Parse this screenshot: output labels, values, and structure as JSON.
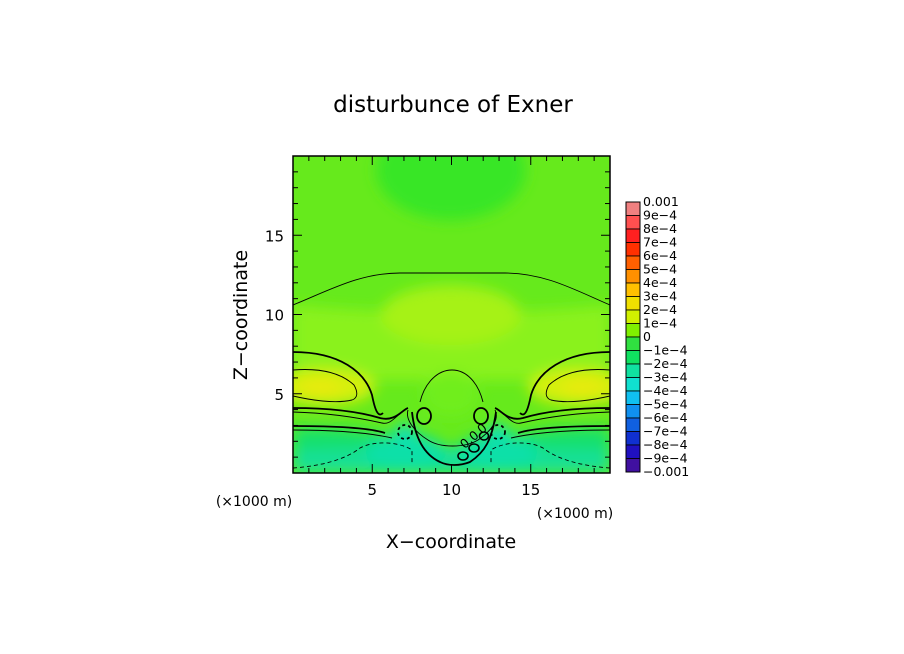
{
  "chart_data": {
    "type": "heatmap",
    "title": "disturbunce of Exner",
    "xlabel": "X−coordinate",
    "ylabel": "Z−coordinate",
    "x_unit": "(×1000 m)",
    "y_unit": "(×1000 m)",
    "xlim": [
      0,
      20
    ],
    "ylim": [
      0,
      20
    ],
    "x_ticks": [
      5,
      10,
      15
    ],
    "y_ticks": [
      5,
      10,
      15
    ],
    "x_tick_labels": [
      "5",
      "10",
      "15"
    ],
    "y_tick_labels": [
      "5",
      "10",
      "15"
    ],
    "contour_labels": [
      {
        "text": "0.0",
        "x": 11.3,
        "z": 1.9
      },
      {
        "text": "0",
        "x": 12.1,
        "z": 2.6
      }
    ],
    "colorbar": {
      "labels": [
        "0.001",
        "9e−4",
        "8e−4",
        "7e−4",
        "6e−4",
        "5e−4",
        "4e−4",
        "3e−4",
        "2e−4",
        "1e−4",
        "0",
        "−1e−4",
        "−2e−4",
        "−3e−4",
        "−4e−4",
        "−5e−4",
        "−6e−4",
        "−7e−4",
        "−8e−4",
        "−9e−4",
        "−0.001"
      ],
      "colors": [
        "#f08080",
        "#ff5050",
        "#ff2020",
        "#ff3000",
        "#ff6000",
        "#ff9000",
        "#ffc000",
        "#f0e000",
        "#d0f000",
        "#80f000",
        "#30e040",
        "#10e060",
        "#10e0a0",
        "#10e0d0",
        "#10c0f0",
        "#1090f0",
        "#1060e0",
        "#1030d0",
        "#2010c0",
        "#4010a0",
        "#6010a0"
      ]
    }
  }
}
